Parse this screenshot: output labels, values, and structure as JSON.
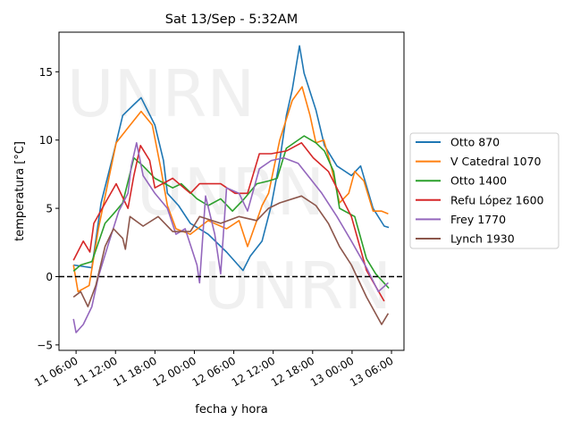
{
  "chart_data": {
    "type": "line",
    "title": "Sat 13/Sep - 5:32AM",
    "xlabel": "fecha y hora",
    "ylabel": "temperatura [°C]",
    "watermark": "UNRN",
    "x_unit": "hours since 11 00:00",
    "xlim": [
      3.4,
      55.9
    ],
    "ylim": [
      -5.4,
      17.9
    ],
    "x_ticks": [
      {
        "value": 6,
        "label": "11 06:00"
      },
      {
        "value": 12,
        "label": "11 12:00"
      },
      {
        "value": 18,
        "label": "11 18:00"
      },
      {
        "value": 24,
        "label": "12 00:00"
      },
      {
        "value": 30,
        "label": "12 06:00"
      },
      {
        "value": 36,
        "label": "12 12:00"
      },
      {
        "value": 42,
        "label": "12 18:00"
      },
      {
        "value": 48,
        "label": "13 00:00"
      },
      {
        "value": 54,
        "label": "13 06:00"
      }
    ],
    "y_ticks": [
      {
        "value": -5,
        "label": "−5"
      },
      {
        "value": 0,
        "label": "0"
      },
      {
        "value": 5,
        "label": "5"
      },
      {
        "value": 10,
        "label": "10"
      },
      {
        "value": 15,
        "label": "15"
      }
    ],
    "reference_line": {
      "y": 0,
      "style": "dashed",
      "color": "#000000"
    },
    "legend_position": "center-right outside",
    "grid": false,
    "series": [
      {
        "name": "Otto 870",
        "color": "#1f77b4",
        "x": [
          5.6,
          8.4,
          9.8,
          11.7,
          13.1,
          14.8,
          15.9,
          18,
          19.3,
          19.9,
          21.6,
          23.4,
          26.1,
          28.9,
          31.4,
          32.5,
          34.3,
          35.7,
          37,
          38,
          38.9,
          40,
          40.7,
          42.5,
          43.8,
          45.7,
          47.9,
          49.3,
          51.2,
          52.9,
          53.6
        ],
        "y": [
          0.85,
          0.65,
          5.4,
          9,
          11.8,
          12.6,
          13.1,
          11.1,
          8.5,
          6.1,
          5.2,
          3.9,
          3.1,
          1.8,
          0.45,
          1.5,
          2.6,
          5.2,
          8.5,
          11.8,
          13.7,
          16.9,
          14.9,
          12.2,
          9.6,
          8.1,
          7.4,
          8.1,
          5.0,
          3.7,
          3.6
        ]
      },
      {
        "name": "V Catedral 1070",
        "color": "#ff7f0e",
        "x": [
          5.6,
          6.3,
          8,
          9.4,
          12.1,
          13.9,
          15.9,
          17.6,
          18.9,
          19.9,
          21.2,
          23.4,
          26.1,
          28.9,
          30.8,
          32.1,
          33.5,
          34.3,
          35.3,
          37,
          38.9,
          40.4,
          41.6,
          42.5,
          43.7,
          44.8,
          46.1,
          47.5,
          48.4,
          49.8,
          51.2,
          52.5,
          53.5
        ],
        "y": [
          0.85,
          -1.1,
          -0.65,
          3.5,
          9.8,
          10.9,
          12.1,
          11.1,
          7.9,
          5.2,
          3.5,
          3.1,
          4.1,
          3.5,
          4.1,
          2.2,
          4.1,
          5.2,
          6.1,
          10,
          12.9,
          13.9,
          11.8,
          9.8,
          10,
          8.1,
          5.4,
          6.1,
          7.7,
          7.0,
          4.8,
          4.8,
          4.6
        ]
      },
      {
        "name": "Otto 1400",
        "color": "#2ca02c",
        "x": [
          5.6,
          6.7,
          8.4,
          10.4,
          11.7,
          13.1,
          14.8,
          16.2,
          18,
          20.7,
          22,
          24.4,
          26.1,
          28,
          29.8,
          31.6,
          33.5,
          35.3,
          36.6,
          38,
          40.7,
          42.5,
          43.8,
          45.2,
          46.1,
          48.4,
          50.2,
          51.6,
          53.6
        ],
        "y": [
          0.4,
          0.85,
          1.1,
          3.9,
          4.6,
          5.4,
          8.7,
          8.1,
          7.2,
          6.5,
          6.8,
          5.7,
          5.2,
          5.7,
          4.8,
          5.7,
          6.8,
          7.0,
          7.2,
          9.4,
          10.3,
          9.8,
          9.2,
          7.7,
          5.0,
          4.4,
          1.3,
          0.2,
          -0.85
        ]
      },
      {
        "name": "Refu López 1600",
        "color": "#d62728",
        "x": [
          5.6,
          7.1,
          8.1,
          8.7,
          10.8,
          12.1,
          13.9,
          14.8,
          15.8,
          17.2,
          18,
          20.7,
          23.4,
          24.8,
          28,
          30.2,
          32.1,
          33.9,
          35.7,
          38,
          40.3,
          42.1,
          44.4,
          46.1,
          47.9,
          50.2,
          52.9
        ],
        "y": [
          1.2,
          2.6,
          1.8,
          3.9,
          5.7,
          6.8,
          5.0,
          7.4,
          9.6,
          8.5,
          6.5,
          7.2,
          6.1,
          6.8,
          6.8,
          6.1,
          6.1,
          9.0,
          9.0,
          9.2,
          9.8,
          8.7,
          7.7,
          6.1,
          4.4,
          0.45,
          -1.8
        ]
      },
      {
        "name": "Frey 1770",
        "color": "#9467bd",
        "x": [
          5.6,
          6,
          7.1,
          8.4,
          9.4,
          10.8,
          12.5,
          13.9,
          14.4,
          15.2,
          16.2,
          18,
          19.9,
          21.2,
          22.6,
          24.4,
          24.8,
          25.7,
          27.1,
          28,
          28.9,
          30.8,
          32.1,
          33.9,
          35.7,
          37.6,
          39.8,
          41.6,
          43.4,
          45.7,
          47.9,
          50.2,
          52,
          53.5
        ],
        "y": [
          -3.1,
          -4.1,
          -3.5,
          -2.2,
          0,
          2.2,
          4.8,
          6.1,
          8.1,
          9.8,
          7.4,
          6.1,
          5.0,
          3.1,
          3.5,
          0.85,
          -0.45,
          5.9,
          3.1,
          0.2,
          6.5,
          6.1,
          4.8,
          7.9,
          8.5,
          8.7,
          8.3,
          7.2,
          6.1,
          4.4,
          2.6,
          0.65,
          -1.1,
          -0.45
        ]
      },
      {
        "name": "Lynch 1930",
        "color": "#8c564b",
        "x": [
          5.6,
          6.7,
          7.8,
          9,
          10.4,
          11.7,
          13.1,
          13.5,
          14.2,
          16.2,
          18.5,
          20.7,
          23.4,
          24.8,
          28,
          30.8,
          33.5,
          35.3,
          37,
          40.3,
          42.5,
          44.4,
          46.1,
          47.9,
          50.2,
          52.5,
          53.5
        ],
        "y": [
          -1.5,
          -1.1,
          -2.2,
          -0.65,
          2.2,
          3.5,
          2.8,
          2.0,
          4.4,
          3.7,
          4.4,
          3.3,
          3.3,
          4.4,
          3.9,
          4.4,
          4.1,
          5.0,
          5.4,
          5.9,
          5.2,
          3.9,
          2.2,
          0.85,
          -1.5,
          -3.5,
          -2.7
        ]
      }
    ]
  }
}
